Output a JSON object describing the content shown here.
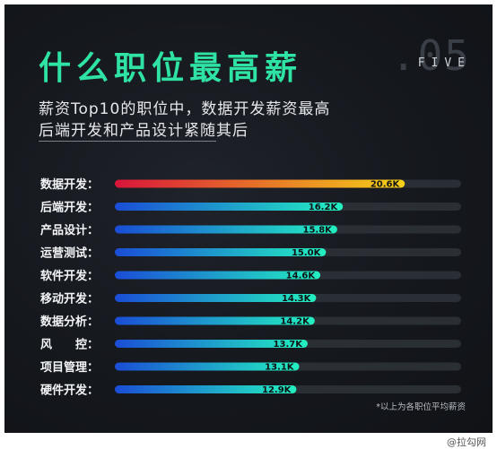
{
  "header": {
    "title": "什么职位最高薪",
    "deco_number": ".05",
    "deco_word": "FIVE",
    "subtitle_line1": "薪资Top10的职位中，数据开发薪资最高",
    "subtitle_line2": "后端开发和产品设计紧随其后"
  },
  "chart_data": {
    "type": "bar",
    "orientation": "horizontal",
    "categories": [
      "数据开发：",
      "后端开发：",
      "产品设计：",
      "运营测试：",
      "软件开发：",
      "移动开发：",
      "数据分析：",
      "风　　控：",
      "项目管理：",
      "硬件开发："
    ],
    "values": [
      20.6,
      16.2,
      15.8,
      15.0,
      14.6,
      14.3,
      14.2,
      13.7,
      13.1,
      12.9
    ],
    "value_labels": [
      "20.6K",
      "16.2K",
      "15.8K",
      "15.0K",
      "14.6K",
      "14.3K",
      "14.2K",
      "13.7K",
      "13.1K",
      "12.9K"
    ],
    "unit": "K",
    "track_max": 24.6,
    "colors": {
      "first_start": "#d8153a",
      "first_end": "#f5d118",
      "rest_start": "#1a4dd6",
      "rest_end": "#23f0c0",
      "track": "#2a2e35"
    }
  },
  "footnote": "*以上为各职位平均薪资",
  "watermark": "@拉勾网"
}
